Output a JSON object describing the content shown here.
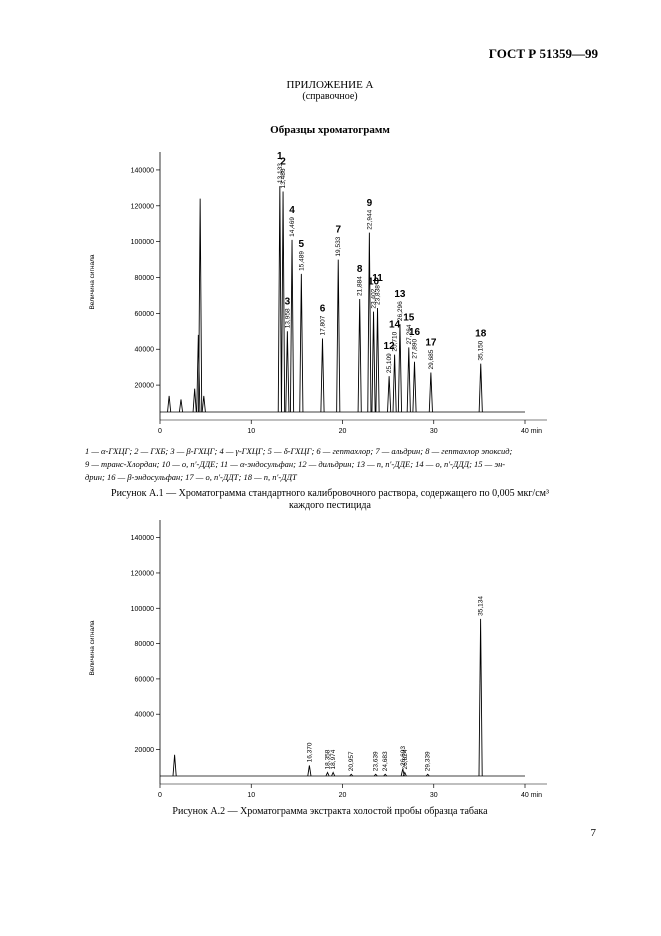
{
  "header": {
    "standard": "ГОСТ Р 51359—99",
    "appendix": "ПРИЛОЖЕНИЕ А",
    "appendix_note": "(справочное)",
    "section_title": "Образцы хроматограмм"
  },
  "legend_lines": [
    "1 — α-ГХЦГ; 2 — ГХБ; 3 — β-ГХЦГ; 4 — γ-ГХЦГ; 5 — δ-ГХЦГ; 6 — гептахлор; 7 — альдрин; 8 — гептахлор эпоксид;",
    "9 — транс-Хлордан; 10 — о, п'-ДДЕ; 11 — α-эндосульфан; 12 — дильдрин; 13 — п, п'-ДДЕ; 14 — о, п'-ДДД; 15 — эн-",
    "дрин; 16 — β-эндосульфан; 17 — о, п'-ДДТ; 18 — п, п'-ДДТ"
  ],
  "caption_1": [
    "Рисунок А.1 — Хроматограмма стандартного калибровочного раствора, содержащего по 0,005 мкг/см³",
    "каждого пестицида"
  ],
  "caption_2": "Рисунок А.2 — Хроматограмма экстракта холостой пробы образца табака",
  "page_number": "7",
  "chart_data": [
    {
      "type": "chromatogram",
      "y_label": "Величина сигнала",
      "color": "#000000",
      "xlim": [
        0,
        40
      ],
      "xticks": [
        0,
        10,
        20,
        30,
        {
          "value": 40,
          "label": "40 min"
        }
      ],
      "ylim": [
        5000,
        150000
      ],
      "yticks": [
        20000,
        40000,
        60000,
        80000,
        100000,
        120000,
        140000
      ],
      "x": [
        1.0,
        2.3,
        3.8,
        4.2,
        4.4,
        4.8,
        13.133,
        13.486,
        13.958,
        14.469,
        15.489,
        17.807,
        19.533,
        21.884,
        22.944,
        23.402,
        23.838,
        25.109,
        26.296,
        25.71,
        27.264,
        27.89,
        29.685,
        35.15
      ],
      "heights": [
        14000,
        12000,
        18000,
        48000,
        124000,
        14000,
        131000,
        128000,
        50000,
        101000,
        82000,
        46000,
        90000,
        68000,
        105000,
        61000,
        63000,
        25000,
        54000,
        37000,
        41000,
        33000,
        27000,
        32000
      ],
      "peak_labels": [
        null,
        null,
        null,
        null,
        null,
        null,
        "1",
        "2",
        "3",
        "4",
        "5",
        "6",
        "7",
        "8",
        "9",
        "10",
        "11",
        "12",
        "13",
        "14",
        "15",
        "16",
        "17",
        "18"
      ],
      "x_labels": [
        null,
        null,
        null,
        null,
        null,
        null,
        "13,133",
        "13,486",
        "13,958",
        "14,469",
        "15,489",
        "17,807",
        "19,533",
        "21,884",
        "22,944",
        "23,402",
        "23,838",
        "25,109",
        "26,296",
        "25,710",
        "27,264",
        "27,890",
        "29,685",
        "35,150"
      ]
    },
    {
      "type": "chromatogram",
      "y_label": "Величина сигнала",
      "color": "#000000",
      "xlim": [
        0,
        40
      ],
      "xticks": [
        0,
        10,
        20,
        30,
        {
          "value": 40,
          "label": "40 min"
        }
      ],
      "ylim": [
        5000,
        150000
      ],
      "yticks": [
        20000,
        40000,
        60000,
        80000,
        100000,
        120000,
        140000
      ],
      "x": [
        1.6,
        16.37,
        18.358,
        18.974,
        20.957,
        23.639,
        24.683,
        26.603,
        26.824,
        29.339,
        35.134
      ],
      "heights": [
        17000,
        11000,
        7000,
        7000,
        6000,
        6000,
        6000,
        9000,
        7000,
        6000,
        94000
      ],
      "peak_labels": [
        null,
        null,
        null,
        null,
        null,
        null,
        null,
        null,
        null,
        null,
        null
      ],
      "x_labels": [
        null,
        "16,370",
        "18,358",
        "18,974",
        "20,957",
        "23,639",
        "24,683",
        "26,603",
        "26,824",
        "29,339",
        "35,134"
      ]
    }
  ]
}
